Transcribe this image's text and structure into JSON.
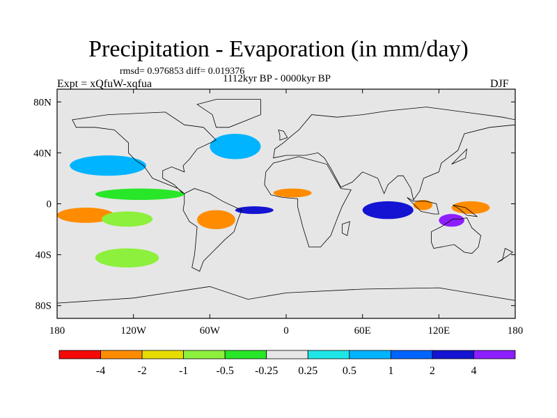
{
  "chart_data": {
    "type": "heatmap",
    "title": "Precipitation - Evaporation (in mm/day)",
    "stats_label": "rmsd= 0.976853 diff= 0.019376",
    "period_label": "1112kyr BP - 0000kyr BP",
    "experiment_label": "Expt = xQfuW-xqfua",
    "season_label": "DJF",
    "xlim": [
      -180,
      180
    ],
    "ylim": [
      -90,
      90
    ],
    "x_ticks": [
      {
        "value": -180,
        "label": "180"
      },
      {
        "value": -120,
        "label": "120W"
      },
      {
        "value": -60,
        "label": "60W"
      },
      {
        "value": 0,
        "label": "0"
      },
      {
        "value": 60,
        "label": "60E"
      },
      {
        "value": 120,
        "label": "120E"
      },
      {
        "value": 180,
        "label": "180"
      }
    ],
    "y_ticks": [
      {
        "value": 80,
        "label": "80N"
      },
      {
        "value": 40,
        "label": "40N"
      },
      {
        "value": 0,
        "label": "0"
      },
      {
        "value": -40,
        "label": "40S"
      },
      {
        "value": -80,
        "label": "80S"
      }
    ],
    "colorbar": {
      "colors": [
        "#f50a0a",
        "#ff8c00",
        "#e6dc00",
        "#8cf03c",
        "#28e628",
        "#e6e6e6",
        "#1ee6e6",
        "#00b4ff",
        "#0064ff",
        "#1414d2",
        "#8c1eff"
      ],
      "labels": [
        "-4",
        "-2",
        "-1",
        "-0.5",
        "-0.25",
        "0.25",
        "0.5",
        "1",
        "2",
        "4"
      ]
    },
    "features": [
      {
        "name": "itcz-pacific",
        "level": -0.3,
        "lon": [
          -150,
          -80
        ],
        "lat": [
          3,
          12
        ]
      },
      {
        "name": "central-pacific-dry",
        "level": -2.5,
        "lon": [
          -180,
          -135
        ],
        "lat": [
          -15,
          -3
        ]
      },
      {
        "name": "central-pacific-mid",
        "level": -0.7,
        "lon": [
          -145,
          -105
        ],
        "lat": [
          -18,
          -6
        ]
      },
      {
        "name": "north-pacific-wet",
        "level": 0.7,
        "lon": [
          -170,
          -110
        ],
        "lat": [
          22,
          38
        ]
      },
      {
        "name": "amazon-dry",
        "level": -2.5,
        "lon": [
          -70,
          -40
        ],
        "lat": [
          -20,
          -5
        ]
      },
      {
        "name": "atlantic-itcz-wet",
        "level": 2.5,
        "lon": [
          -40,
          -10
        ],
        "lat": [
          -8,
          -2
        ]
      },
      {
        "name": "sahel-dry",
        "level": -2.2,
        "lon": [
          -10,
          20
        ],
        "lat": [
          5,
          12
        ]
      },
      {
        "name": "indian-ocean-wet",
        "level": 2.5,
        "lon": [
          60,
          100
        ],
        "lat": [
          -12,
          2
        ]
      },
      {
        "name": "maritime-dry",
        "level": -3,
        "lon": [
          100,
          115
        ],
        "lat": [
          -5,
          3
        ]
      },
      {
        "name": "north-australia-dry",
        "level": -3,
        "lon": [
          130,
          160
        ],
        "lat": [
          -8,
          2
        ]
      },
      {
        "name": "south-pacific-wet",
        "level": 4.5,
        "lon": [
          120,
          140
        ],
        "lat": [
          -18,
          -8
        ]
      },
      {
        "name": "north-atlantic-wet",
        "level": 0.5,
        "lon": [
          -60,
          -20
        ],
        "lat": [
          35,
          55
        ]
      },
      {
        "name": "southern-ocean-dry",
        "level": -0.7,
        "lon": [
          -150,
          -100
        ],
        "lat": [
          -50,
          -35
        ]
      }
    ]
  }
}
